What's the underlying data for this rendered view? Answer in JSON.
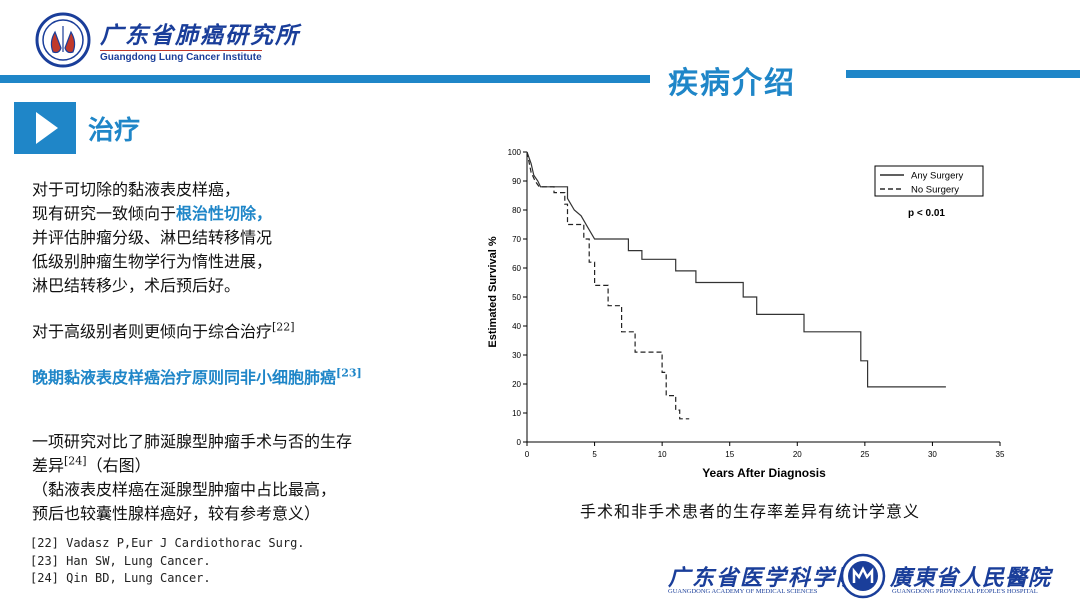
{
  "header": {
    "org_cn": "广东省肺癌研究所",
    "org_en": "Guangdong Lung Cancer Institute",
    "section_title": "疾病介绍"
  },
  "subheader": {
    "title": "治疗"
  },
  "body": {
    "p1_l1": "对于可切除的黏液表皮样癌，",
    "p1_l2_a": "现有研究一致倾向于",
    "p1_l2_hl": "根治性切除，",
    "p1_l3": "并评估肿瘤分级、淋巴结转移情况",
    "p1_l4": "低级别肿瘤生物学行为惰性进展，",
    "p1_l5": "淋巴结转移少，术后预后好。",
    "p2": "对于高级别者则更倾向于综合治疗",
    "p2_ref": "[22]",
    "p3": "晚期黏液表皮样癌治疗原则同非小细胞肺癌",
    "p3_ref": "[23]",
    "p4_l1": "一项研究对比了肺涎腺型肿瘤手术与否的生存",
    "p4_l2_a": "差异",
    "p4_l2_ref": "[24]",
    "p4_l2_b": "（右图）",
    "p4_l3": "（黏液表皮样癌在涎腺型肿瘤中占比最高，",
    "p4_l4": "预后也较囊性腺样癌好，较有参考意义）"
  },
  "references": [
    "[22] Vadasz P,Eur J Cardiothorac Surg.",
    "[23] Han SW, Lung Cancer.",
    "[24] Qin BD, Lung Cancer."
  ],
  "caption": "手术和非手术患者的生存率差异有统计学意义",
  "footer": {
    "left_cn": "广东省医学科学院",
    "left_en": "GUANGDONG ACADEMY OF MEDICAL SCIENCES",
    "right_cn": "廣東省人民醫院",
    "right_en": "GUANGDONG PROVINCIAL PEOPLE'S HOSPITAL"
  },
  "colors": {
    "accent": "#1f86c8",
    "brand_dark": "#1a3e9a",
    "brand_red": "#c0392b"
  },
  "chart_data": {
    "type": "line",
    "xlabel": "Years After Diagnosis",
    "ylabel": "Estimated Survival %",
    "xlim": [
      0,
      35
    ],
    "ylim": [
      0,
      100
    ],
    "x_ticks": [
      "0",
      "5",
      "10",
      "15",
      "20",
      "25",
      "30",
      "35"
    ],
    "y_ticks": [
      "0",
      "10",
      "20",
      "30",
      "40",
      "50",
      "60",
      "70",
      "80",
      "90",
      "100"
    ],
    "annotation": "p < 0.01",
    "legend_position": "top-right",
    "series": [
      {
        "name": "Any Surgery",
        "style": "solid",
        "points": [
          [
            0,
            100
          ],
          [
            0.3,
            96
          ],
          [
            0.5,
            92
          ],
          [
            0.8,
            90
          ],
          [
            1,
            88
          ],
          [
            3,
            88
          ],
          [
            3,
            84
          ],
          [
            3.5,
            80
          ],
          [
            4,
            78
          ],
          [
            4.5,
            74
          ],
          [
            5,
            70
          ],
          [
            7.5,
            70
          ],
          [
            7.5,
            66
          ],
          [
            8.5,
            66
          ],
          [
            8.5,
            63
          ],
          [
            11,
            63
          ],
          [
            11,
            59
          ],
          [
            12.5,
            59
          ],
          [
            12.5,
            55
          ],
          [
            16,
            55
          ],
          [
            16,
            50
          ],
          [
            17,
            50
          ],
          [
            17,
            44
          ],
          [
            20.5,
            44
          ],
          [
            20.5,
            38
          ],
          [
            24.7,
            38
          ],
          [
            24.7,
            28
          ],
          [
            25.2,
            28
          ],
          [
            25.2,
            19
          ],
          [
            31,
            19
          ]
        ]
      },
      {
        "name": "No Surgery",
        "style": "dashed",
        "points": [
          [
            0,
            100
          ],
          [
            0.3,
            93
          ],
          [
            0.6,
            90
          ],
          [
            0.9,
            88
          ],
          [
            2,
            88
          ],
          [
            2,
            86
          ],
          [
            2.8,
            86
          ],
          [
            2.8,
            82
          ],
          [
            3,
            82
          ],
          [
            3,
            75
          ],
          [
            4.2,
            75
          ],
          [
            4.2,
            70
          ],
          [
            4.6,
            70
          ],
          [
            4.6,
            62
          ],
          [
            5,
            62
          ],
          [
            5,
            54
          ],
          [
            6,
            54
          ],
          [
            6,
            47
          ],
          [
            7,
            47
          ],
          [
            7,
            38
          ],
          [
            8,
            38
          ],
          [
            8,
            31
          ],
          [
            10,
            31
          ],
          [
            10,
            24
          ],
          [
            10.3,
            24
          ],
          [
            10.3,
            16
          ],
          [
            11,
            16
          ],
          [
            11,
            11
          ],
          [
            11.3,
            11
          ],
          [
            11.3,
            8
          ],
          [
            12,
            8
          ]
        ]
      }
    ]
  }
}
